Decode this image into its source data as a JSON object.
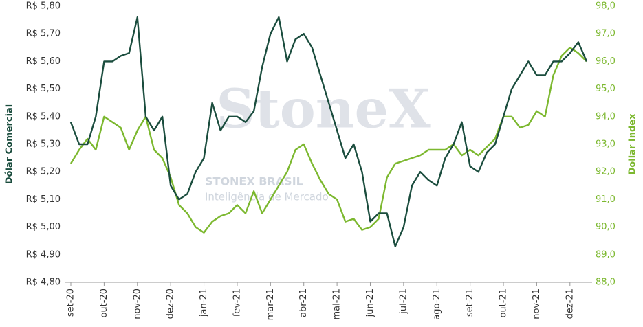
{
  "chart_data": {
    "type": "line",
    "y_label": "Dólar Comercial",
    "y2_label": "Dollar Index",
    "watermark": {
      "brand": "StoneX",
      "company": "STONEX BRASIL",
      "tagline": "Inteligência de Mercado"
    },
    "categories": [
      "set-20",
      null,
      null,
      null,
      "out-20",
      null,
      null,
      null,
      "nov-20",
      null,
      null,
      null,
      "dez-20",
      null,
      null,
      null,
      "jan-21",
      null,
      null,
      null,
      "fev-21",
      null,
      null,
      null,
      "mar-21",
      null,
      null,
      null,
      "abr-21",
      null,
      null,
      null,
      "mai-21",
      null,
      null,
      null,
      "jun-21",
      null,
      null,
      null,
      "jul-21",
      null,
      null,
      null,
      "ago-21",
      null,
      null,
      null,
      "set-21",
      null,
      null,
      null,
      "out-21",
      null,
      null,
      null,
      "nov-21",
      null,
      null,
      null,
      "dez-21",
      null,
      null
    ],
    "series": [
      {
        "name": "Dólar Comercial",
        "color": "#1b4d3e",
        "axis": "y",
        "values": [
          5.38,
          5.3,
          5.3,
          5.4,
          5.6,
          5.6,
          5.62,
          5.63,
          5.76,
          5.4,
          5.35,
          5.4,
          5.15,
          5.1,
          5.12,
          5.2,
          5.25,
          5.45,
          5.35,
          5.4,
          5.4,
          5.38,
          5.42,
          5.58,
          5.7,
          5.76,
          5.6,
          5.68,
          5.7,
          5.65,
          5.55,
          5.45,
          5.35,
          5.25,
          5.3,
          5.2,
          5.02,
          5.05,
          5.05,
          4.93,
          5.0,
          5.15,
          5.2,
          5.17,
          5.15,
          5.25,
          5.3,
          5.38,
          5.22,
          5.2,
          5.27,
          5.3,
          5.4,
          5.5,
          5.55,
          5.6,
          5.55,
          5.55,
          5.6,
          5.6,
          5.63,
          5.67,
          5.6
        ]
      },
      {
        "name": "Dollar Index",
        "color": "#7cb82f",
        "axis": "y2",
        "values": [
          92.3,
          92.8,
          93.2,
          92.8,
          94.0,
          93.8,
          93.6,
          92.8,
          93.5,
          94.0,
          92.8,
          92.5,
          91.8,
          90.8,
          90.5,
          90.0,
          89.8,
          90.2,
          90.4,
          90.5,
          90.8,
          90.5,
          91.3,
          90.5,
          91.0,
          91.5,
          92.0,
          92.8,
          93.0,
          92.3,
          91.7,
          91.2,
          91.0,
          90.2,
          90.3,
          89.9,
          90.0,
          90.3,
          91.8,
          92.3,
          92.4,
          92.5,
          92.6,
          92.8,
          92.8,
          92.8,
          93.0,
          92.6,
          92.8,
          92.6,
          92.9,
          93.2,
          94.0,
          94.0,
          93.6,
          93.7,
          94.2,
          94.0,
          95.5,
          96.2,
          96.5,
          96.3,
          96.0
        ]
      }
    ],
    "ylim": [
      4.8,
      5.8
    ],
    "yticks": [
      {
        "value": 4.8,
        "label": "R$ 4,80"
      },
      {
        "value": 4.9,
        "label": "R$ 4,90"
      },
      {
        "value": 5.0,
        "label": "R$ 5,00"
      },
      {
        "value": 5.1,
        "label": "R$ 5,10"
      },
      {
        "value": 5.2,
        "label": "R$ 5,20"
      },
      {
        "value": 5.3,
        "label": "R$ 5,30"
      },
      {
        "value": 5.4,
        "label": "R$ 5,40"
      },
      {
        "value": 5.5,
        "label": "R$ 5,50"
      },
      {
        "value": 5.6,
        "label": "R$ 5,60"
      },
      {
        "value": 5.7,
        "label": "R$ 5,70"
      },
      {
        "value": 5.8,
        "label": "R$ 5,80"
      }
    ],
    "y2lim": [
      88,
      98
    ],
    "y2ticks": [
      {
        "value": 88,
        "label": "88,0"
      },
      {
        "value": 89,
        "label": "89,0"
      },
      {
        "value": 90,
        "label": "90,0"
      },
      {
        "value": 91,
        "label": "91,0"
      },
      {
        "value": 92,
        "label": "92,0"
      },
      {
        "value": 93,
        "label": "93,0"
      },
      {
        "value": 94,
        "label": "94,0"
      },
      {
        "value": 95,
        "label": "95,0"
      },
      {
        "value": 96,
        "label": "96,0"
      },
      {
        "value": 97,
        "label": "97,0"
      },
      {
        "value": 98,
        "label": "98,0"
      }
    ],
    "grid": false
  }
}
